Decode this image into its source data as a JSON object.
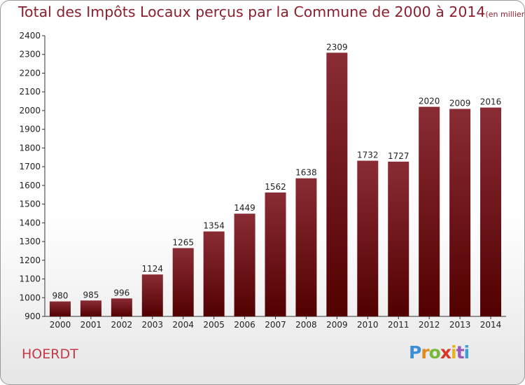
{
  "title": "Total des Impôts Locaux perçus par la Commune de 2000 à 2014",
  "unit": "(en milliers d'€)",
  "commune": "HOERDT",
  "logo": {
    "p": "P",
    "r": "r",
    "o": "o",
    "x": "x",
    "i1": "i",
    "t": "t",
    "i2": "i"
  },
  "colors": {
    "bar_top": "#8a2c34",
    "bar_bottom": "#520000",
    "title": "#8b1f2e",
    "commune": "#c43a46"
  },
  "chart_data": {
    "type": "bar",
    "categories": [
      "2000",
      "2001",
      "2002",
      "2003",
      "2004",
      "2005",
      "2006",
      "2007",
      "2008",
      "2009",
      "2010",
      "2011",
      "2012",
      "2013",
      "2014"
    ],
    "values": [
      980,
      985,
      996,
      1124,
      1265,
      1354,
      1449,
      1562,
      1638,
      2309,
      1732,
      1727,
      2020,
      2009,
      2016
    ],
    "title": "Total des Impôts Locaux perçus par la Commune de 2000 à 2014",
    "xlabel": "",
    "ylabel": "",
    "ylim": [
      900,
      2400
    ],
    "yticks": [
      900,
      1000,
      1100,
      1200,
      1300,
      1400,
      1500,
      1600,
      1700,
      1800,
      1900,
      2000,
      2100,
      2200,
      2300,
      2400
    ],
    "grid": false,
    "data_labels": true
  }
}
